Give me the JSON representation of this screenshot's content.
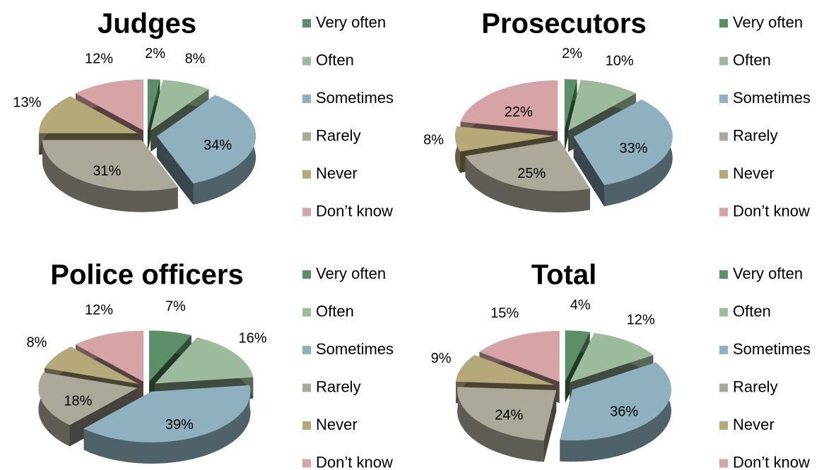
{
  "chart_data": [
    {
      "type": "pie",
      "title": "Judges",
      "categories": [
        "Very often",
        "Often",
        "Sometimes",
        "Rarely",
        "Never",
        "Don’t know"
      ],
      "values": [
        2,
        8,
        34,
        31,
        13,
        12
      ],
      "value_labels": [
        "2%",
        "8%",
        "34%",
        "31%",
        "13%",
        "12%"
      ],
      "colors": [
        "#5b8f67",
        "#9cbb9c",
        "#8fb1bf",
        "#aca89a",
        "#b5a979",
        "#d6a3a6"
      ]
    },
    {
      "type": "pie",
      "title": "Prosecutors",
      "categories": [
        "Very often",
        "Often",
        "Sometimes",
        "Rarely",
        "Never",
        "Don’t know"
      ],
      "values": [
        2,
        10,
        33,
        25,
        8,
        22
      ],
      "value_labels": [
        "2%",
        "10%",
        "33%",
        "25%",
        "8%",
        "22%"
      ],
      "colors": [
        "#5b8f67",
        "#9cbb9c",
        "#8fb1bf",
        "#aca89a",
        "#b5a979",
        "#d6a3a6"
      ]
    },
    {
      "type": "pie",
      "title": "Police officers",
      "categories": [
        "Very often",
        "Often",
        "Sometimes",
        "Rarely",
        "Never",
        "Don’t know"
      ],
      "values": [
        7,
        16,
        39,
        18,
        8,
        12
      ],
      "value_labels": [
        "7%",
        "16%",
        "39%",
        "18%",
        "8%",
        "12%"
      ],
      "colors": [
        "#5b8f67",
        "#9cbb9c",
        "#8fb1bf",
        "#aca89a",
        "#b5a979",
        "#d6a3a6"
      ]
    },
    {
      "type": "pie",
      "title": "Total",
      "categories": [
        "Very often",
        "Often",
        "Sometimes",
        "Rarely",
        "Never",
        "Don’t know"
      ],
      "values": [
        4,
        12,
        36,
        24,
        9,
        15
      ],
      "value_labels": [
        "4%",
        "12%",
        "36%",
        "24%",
        "9%",
        "15%"
      ],
      "colors": [
        "#5b8f67",
        "#9cbb9c",
        "#8fb1bf",
        "#aca89a",
        "#b5a979",
        "#d6a3a6"
      ]
    }
  ]
}
